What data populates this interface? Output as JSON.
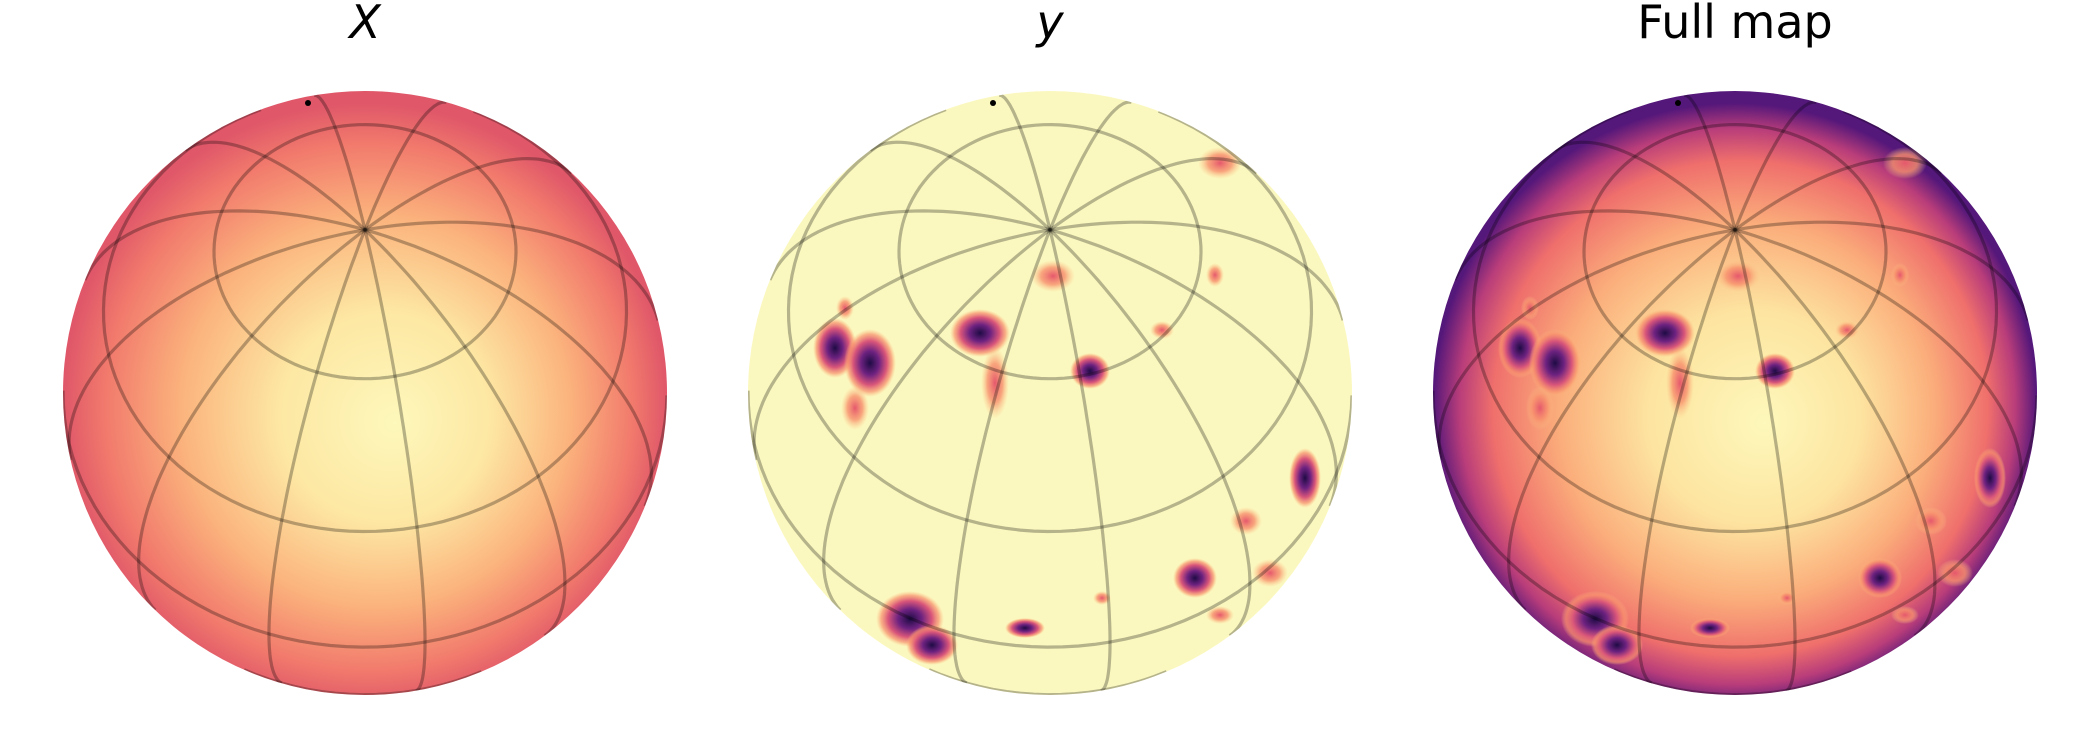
{
  "figure": {
    "panels": [
      {
        "key": "x",
        "title": "X",
        "title_style": "italic",
        "map": "smooth",
        "colormap": "magma"
      },
      {
        "key": "y",
        "title": "y",
        "title_style": "italic",
        "map": "spots",
        "colormap": "magma"
      },
      {
        "key": "full",
        "title": "Full map",
        "title_style": "normal",
        "map": "combined",
        "colormap": "magma"
      }
    ],
    "colors": {
      "background": "#ffffff",
      "limb": "#e2586a",
      "mid": "#f89a6a",
      "center": "#fdf6b8",
      "spot_core": "#2b0f54",
      "spot_mid": "#7d2a7e",
      "spot_edge": "#f0826f",
      "deep_limb": "#5e1b7a"
    }
  }
}
